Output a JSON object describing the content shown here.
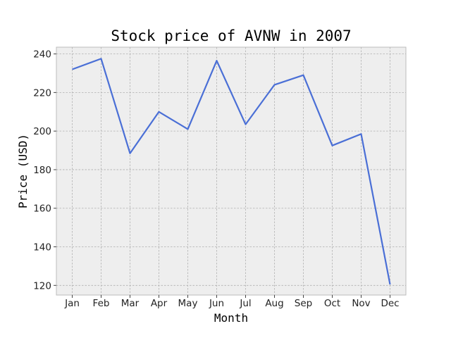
{
  "chart_data": {
    "type": "line",
    "title": "Stock price of AVNW in 2007",
    "xlabel": "Month",
    "ylabel": "Price (USD)",
    "categories": [
      "Jan",
      "Feb",
      "Mar",
      "Apr",
      "May",
      "Jun",
      "Jul",
      "Aug",
      "Sep",
      "Oct",
      "Nov",
      "Dec"
    ],
    "series": [
      {
        "values": [
          232.0,
          237.5,
          188.5,
          210.0,
          201.0,
          236.5,
          203.5,
          224.0,
          229.0,
          192.5,
          198.5,
          120.5
        ],
        "color": "#4a6fd6"
      }
    ],
    "yticks": [
      120,
      140,
      160,
      180,
      200,
      220,
      240
    ],
    "ylim": [
      115,
      243.5
    ],
    "grid": true,
    "background": "#eeeeee"
  }
}
